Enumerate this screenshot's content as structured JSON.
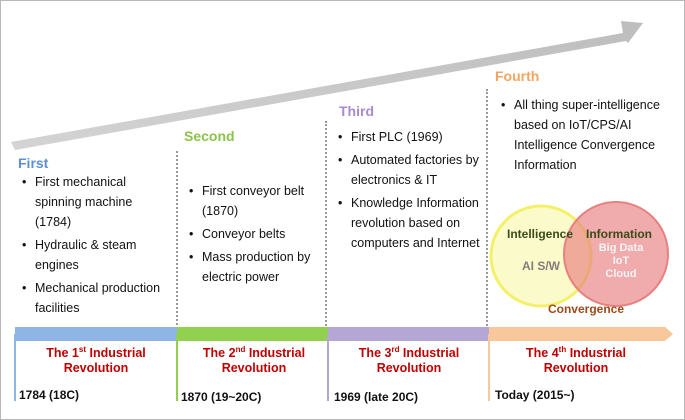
{
  "eras": [
    {
      "heading": "First",
      "color": "#5b8fd6",
      "items": [
        "First mechanical spinning machine (1784)",
        "Hydraulic & steam engines",
        "Mechanical production facilities"
      ]
    },
    {
      "heading": "Second",
      "color": "#8bc34a",
      "items": [
        "First conveyor belt (1870)",
        "Conveyor belts",
        "Mass production by electric power"
      ]
    },
    {
      "heading": "Third",
      "color": "#a78bd0",
      "items": [
        "First PLC (1969)",
        "Automated factories by electronics & IT",
        "Knowledge Information revolution based on computers and Internet"
      ]
    },
    {
      "heading": "Fourth",
      "color": "#f4a460",
      "items": [
        "All thing super-intelligence based on IoT/CPS/AI Intelligence Convergence Information"
      ]
    }
  ],
  "revolutions": [
    {
      "pre": "The 1",
      "ord": "st",
      "post": " Industrial",
      "line2": "Revolution",
      "date": "1784 (18C)"
    },
    {
      "pre": "The 2",
      "ord": "nd",
      "post": " Industrial",
      "line2": "Revolution",
      "date": "1870 (19~20C)"
    },
    {
      "pre": "The 3",
      "ord": "rd",
      "post": " Industrial",
      "line2": "Revolution",
      "date": "1969 (late 20C)"
    },
    {
      "pre": "The 4",
      "ord": "th",
      "post": " Industrial",
      "line2": "Revolution",
      "date": "Today (2015~)"
    }
  ],
  "timeline_colors": [
    "#8fb5e6",
    "#92d050",
    "#b4a7d6",
    "#f8c79b"
  ],
  "venn": {
    "left_title": "Intelligence",
    "left_body": "AI S/W",
    "right_title": "Information",
    "right_lines": [
      "Big Data",
      "IoT",
      "Cloud"
    ],
    "caption": "Convergence",
    "left_color": "#f3f06a",
    "right_color": "#e88080"
  }
}
